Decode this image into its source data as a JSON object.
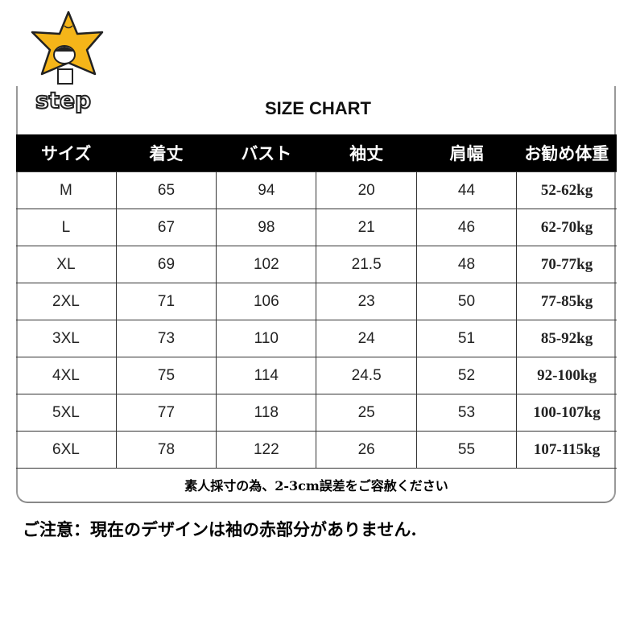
{
  "logo": {
    "text": "step",
    "icon": "star-mascot-icon",
    "color": "#F5B519"
  },
  "title": "SIZE CHART",
  "table": {
    "headers": [
      "サイズ",
      "着丈",
      "バスト",
      "袖丈",
      "肩幅",
      "お勧め体重"
    ],
    "rows": [
      [
        "M",
        "65",
        "94",
        "20",
        "44",
        "52-62kg"
      ],
      [
        "L",
        "67",
        "98",
        "21",
        "46",
        "62-70kg"
      ],
      [
        "XL",
        "69",
        "102",
        "21.5",
        "48",
        "70-77kg"
      ],
      [
        "2XL",
        "71",
        "106",
        "23",
        "50",
        "77-85kg"
      ],
      [
        "3XL",
        "73",
        "110",
        "24",
        "51",
        "85-92kg"
      ],
      [
        "4XL",
        "75",
        "114",
        "24.5",
        "52",
        "92-100kg"
      ],
      [
        "5XL",
        "77",
        "118",
        "25",
        "53",
        "100-107kg"
      ],
      [
        "6XL",
        "78",
        "122",
        "26",
        "55",
        "107-115kg"
      ]
    ]
  },
  "footer": "素人採寸の為、2-3cm誤差をご容赦ください",
  "note": "ご注意：現在のデザインは袖の赤部分がありません."
}
